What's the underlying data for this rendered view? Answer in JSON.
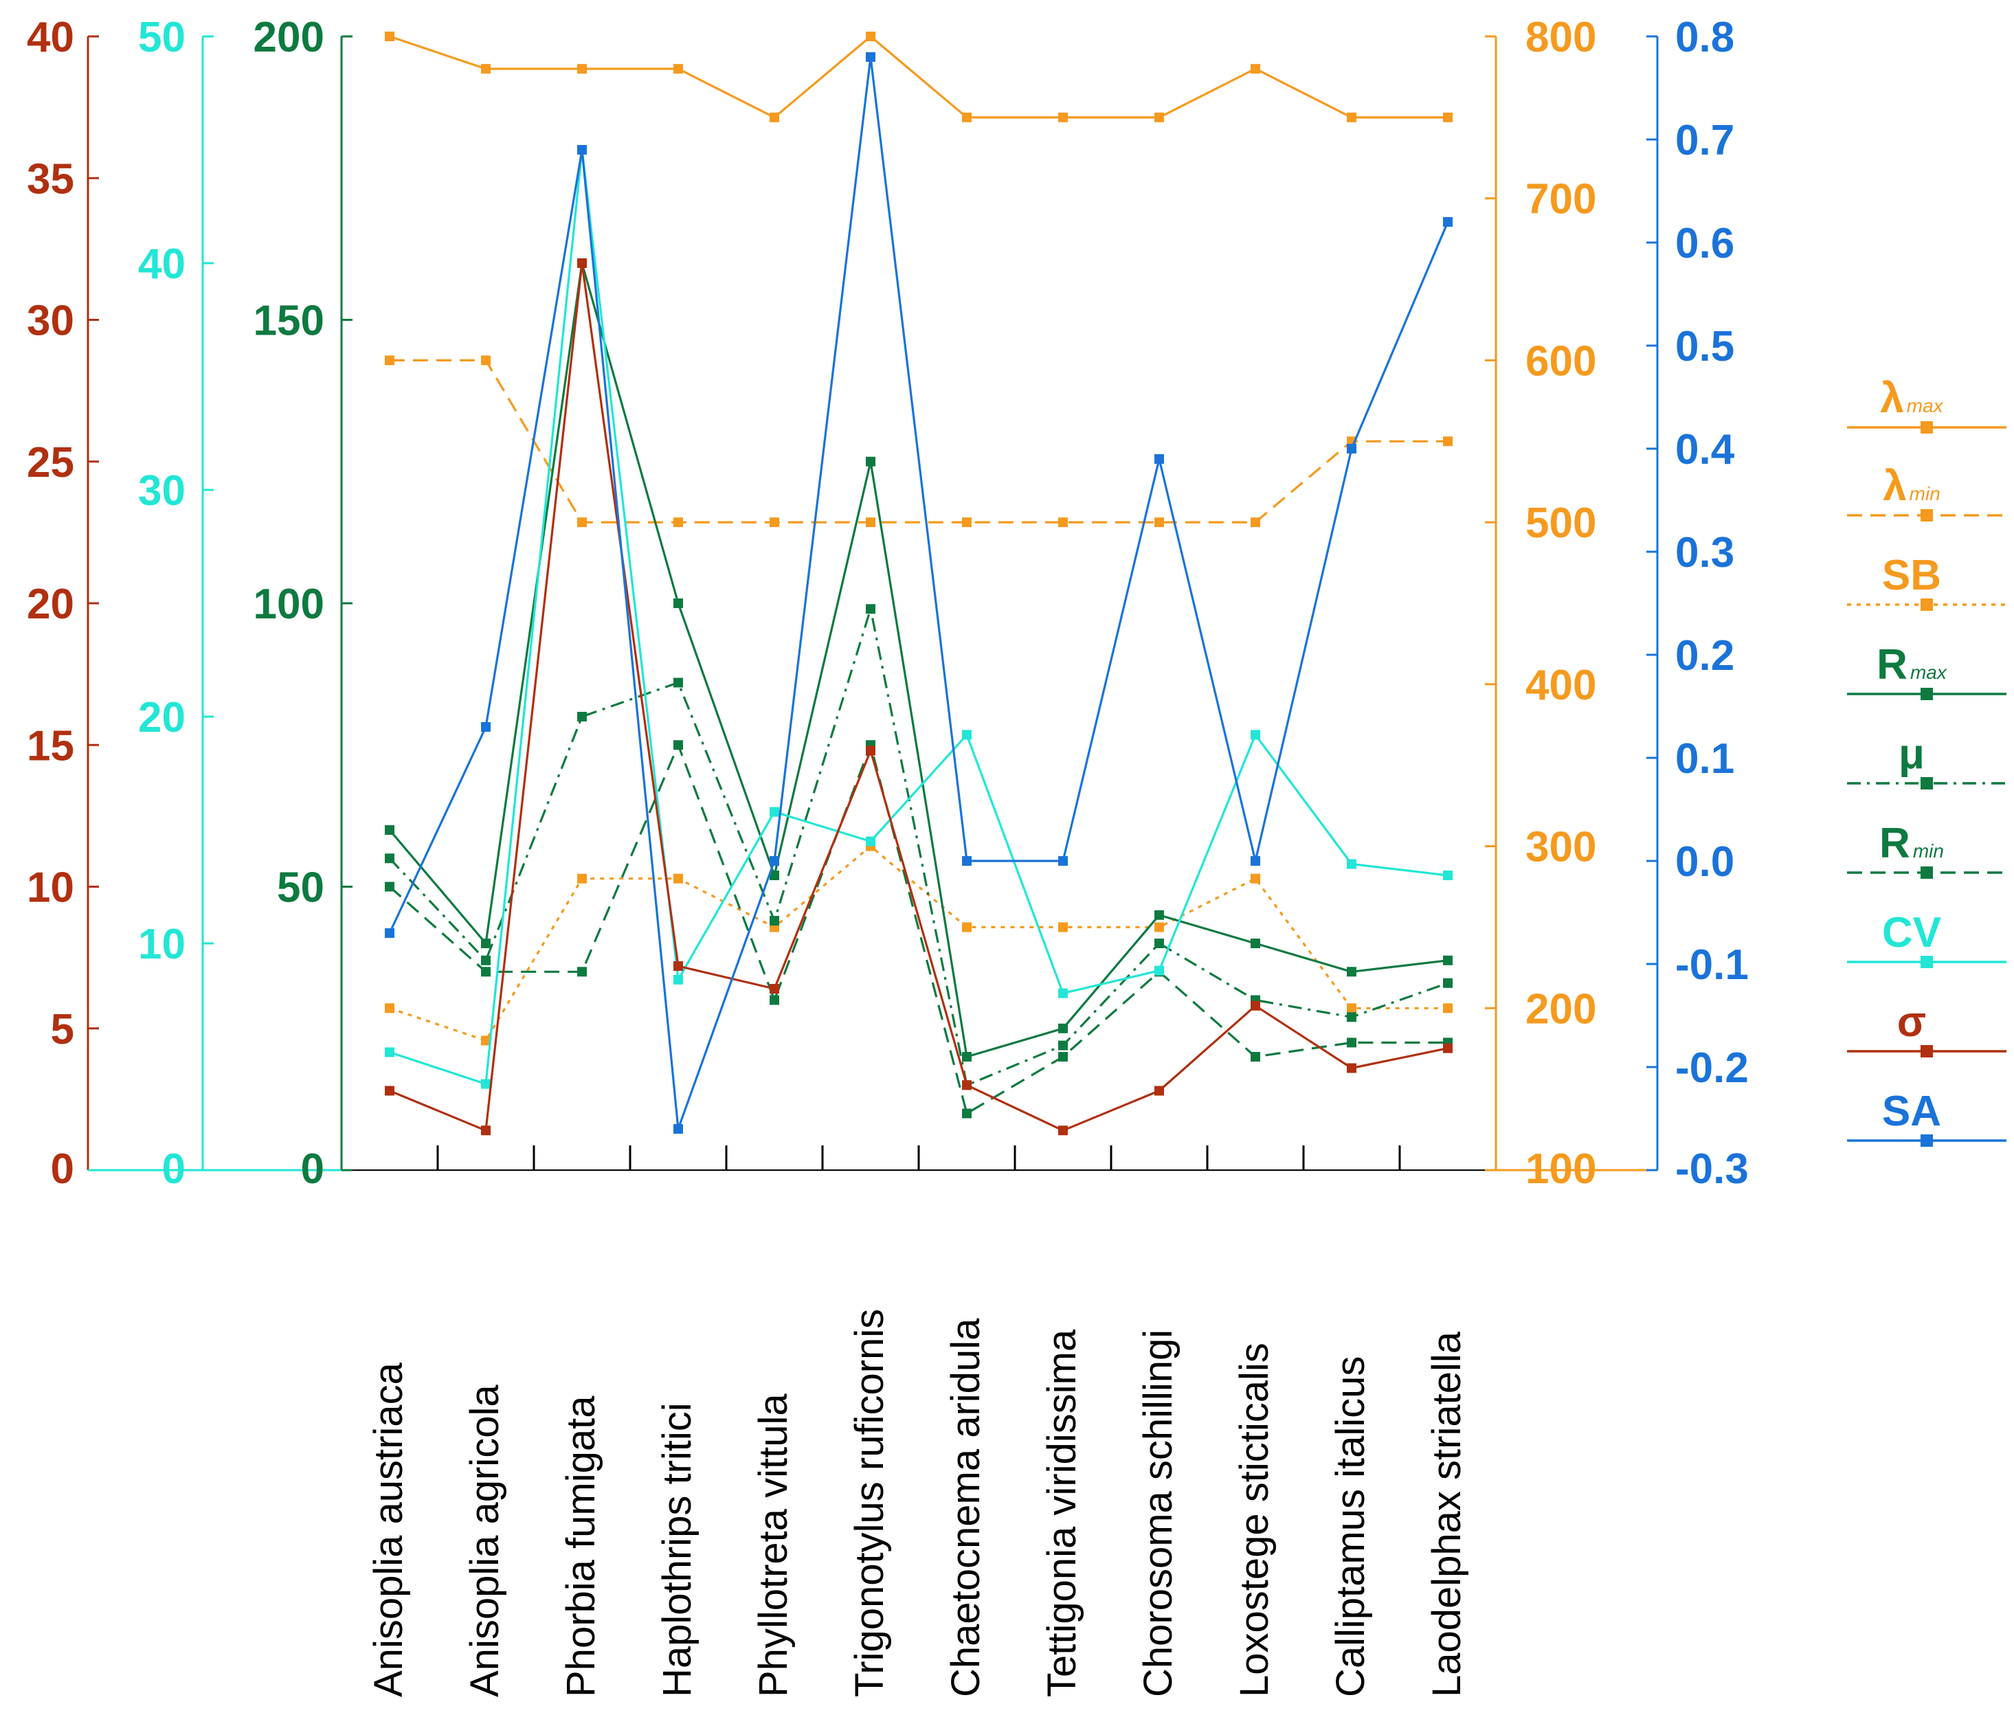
{
  "chart_data": {
    "type": "line",
    "title": "",
    "categories": [
      "Anisoplia austriaca",
      "Anisoplia agricola",
      "Phorbia fumigata",
      "Haplothrips tritici",
      "Phyllotreta vittula",
      "Trigonotylus ruficornis",
      "Chaetocnema aridula",
      "Tettigonia viridissima",
      "Chorosoma schillingi",
      "Loxostege sticticalis",
      "Calliptamus italicus",
      "Laodelphax striatella"
    ],
    "axes": [
      {
        "id": "sigma",
        "color": "#b03010",
        "ylim": [
          0,
          40
        ],
        "ticks": [
          "0",
          "5",
          "10",
          "15",
          "20",
          "25",
          "30",
          "35",
          "40"
        ]
      },
      {
        "id": "cv",
        "color": "#22e6d6",
        "ylim": [
          0,
          50
        ],
        "ticks": [
          "0",
          "10",
          "20",
          "30",
          "40",
          "50"
        ]
      },
      {
        "id": "r",
        "color": "#0e7a40",
        "ylim": [
          0,
          200
        ],
        "ticks": [
          "0",
          "50",
          "100",
          "150",
          "200"
        ]
      },
      {
        "id": "lambda",
        "color": "#f59a1e",
        "ylim": [
          100,
          800
        ],
        "ticks": [
          "100",
          "200",
          "300",
          "400",
          "500",
          "600",
          "700",
          "800"
        ]
      },
      {
        "id": "sa",
        "color": "#1a73d9",
        "ylim": [
          -0.3,
          0.8
        ],
        "ticks": [
          "-0.3",
          "-0.2",
          "-0.1",
          "0.0",
          "0.1",
          "0.2",
          "0.3",
          "0.4",
          "0.5",
          "0.6",
          "0.7",
          "0.8"
        ]
      }
    ],
    "series": [
      {
        "name": "λ",
        "sub": "max",
        "axis": "lambda",
        "color": "#f59a1e",
        "dash": "solid",
        "values": [
          800,
          780,
          780,
          780,
          750,
          800,
          750,
          750,
          750,
          780,
          750,
          750
        ]
      },
      {
        "name": "λ",
        "sub": "min",
        "axis": "lambda",
        "color": "#f59a1e",
        "dash": "dashed",
        "values": [
          600,
          600,
          500,
          500,
          500,
          500,
          500,
          500,
          500,
          500,
          550,
          550
        ]
      },
      {
        "name": "SB",
        "sub": "",
        "axis": "lambda",
        "color": "#f59a1e",
        "dash": "dotted",
        "values": [
          200,
          180,
          280,
          280,
          250,
          300,
          250,
          250,
          250,
          280,
          200,
          200
        ]
      },
      {
        "name": "R",
        "sub": "max",
        "axis": "r",
        "color": "#0e7a40",
        "dash": "solid",
        "values": [
          60,
          40,
          160,
          100,
          52,
          125,
          20,
          25,
          45,
          40,
          35,
          37
        ]
      },
      {
        "name": "μ",
        "sub": "",
        "axis": "r",
        "color": "#0e7a40",
        "dash": "dashdot",
        "values": [
          55,
          37,
          80,
          86,
          44,
          99,
          15,
          22,
          40,
          30,
          27,
          33
        ]
      },
      {
        "name": "R",
        "sub": "min",
        "axis": "r",
        "color": "#0e7a40",
        "dash": "dashed",
        "values": [
          50,
          35,
          35,
          75,
          30,
          75,
          10,
          20,
          35,
          20,
          22.5,
          22.5
        ]
      },
      {
        "name": "CV",
        "sub": "",
        "axis": "cv",
        "color": "#22e6d6",
        "dash": "solid",
        "values": [
          5.2,
          3.8,
          45,
          8.4,
          15.8,
          14.5,
          19.2,
          7.8,
          8.8,
          19.2,
          13.5,
          13
        ]
      },
      {
        "name": "σ",
        "sub": "",
        "axis": "sigma",
        "color": "#b03010",
        "dash": "solid",
        "values": [
          2.8,
          1.4,
          32,
          7.2,
          6.4,
          14.8,
          3,
          1.4,
          2.8,
          5.8,
          3.6,
          4.3
        ]
      },
      {
        "name": "SA",
        "sub": "",
        "axis": "sa",
        "color": "#1a73d9",
        "dash": "solid",
        "values": [
          -0.07,
          0.13,
          0.69,
          -0.26,
          0.0,
          0.78,
          0.0,
          0.0,
          0.39,
          0.0,
          0.4,
          0.62
        ]
      }
    ],
    "legend_position": "right",
    "grid": false
  }
}
